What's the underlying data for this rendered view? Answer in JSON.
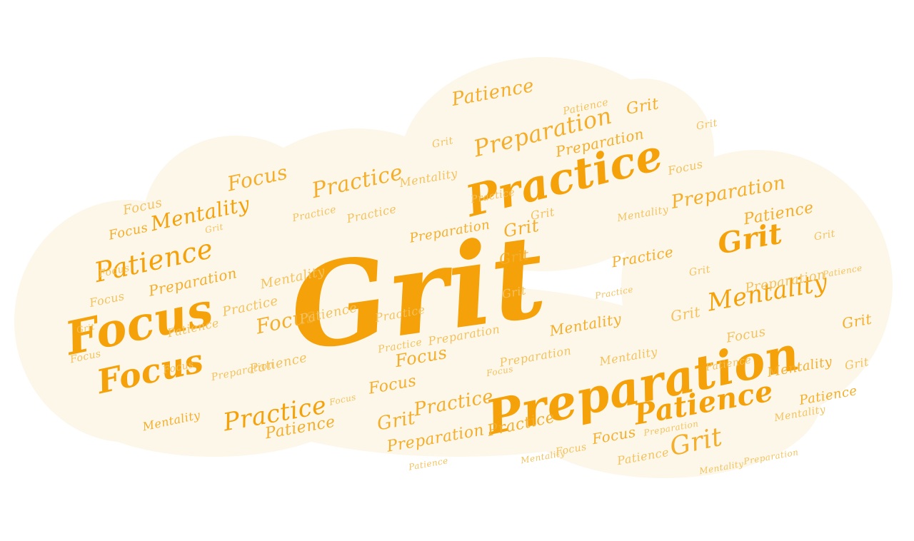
{
  "colors": {
    "background": "#ffffff",
    "cloud_fill": "#fdf7e9",
    "word_strong": "#f5a10a",
    "word_medium": "#f4ae2b",
    "word_light": "#f3c25e"
  },
  "words": [
    {
      "text": "Grit",
      "tone": "strong"
    },
    {
      "text": "Preparation",
      "tone": "strong"
    },
    {
      "text": "Practice",
      "tone": "strong"
    },
    {
      "text": "Grit",
      "tone": "strong"
    },
    {
      "text": "Mentality",
      "tone": "strong"
    },
    {
      "text": "Patience",
      "tone": "strong"
    },
    {
      "text": "Focus",
      "tone": "strong"
    },
    {
      "text": "Focus",
      "tone": "strong"
    },
    {
      "text": "Patience",
      "tone": "strong"
    },
    {
      "text": "Mentality",
      "tone": "strong"
    },
    {
      "text": "Practice",
      "tone": "strong"
    },
    {
      "text": "Preparation",
      "tone": "medium"
    },
    {
      "text": "Practice",
      "tone": "medium"
    },
    {
      "text": "Grit",
      "tone": "medium"
    },
    {
      "text": "Patience",
      "tone": "medium"
    },
    {
      "text": "Preparation",
      "tone": "medium"
    },
    {
      "text": "Focus",
      "tone": "medium"
    },
    {
      "text": "Grit",
      "tone": "medium"
    },
    {
      "text": "Grit",
      "tone": "medium"
    },
    {
      "text": "Focus",
      "tone": "medium"
    },
    {
      "text": "Practice",
      "tone": "medium"
    },
    {
      "text": "Preparation",
      "tone": "medium"
    },
    {
      "text": "Patience",
      "tone": "medium"
    },
    {
      "text": "Preparation",
      "tone": "medium"
    },
    {
      "text": "Focus",
      "tone": "medium"
    },
    {
      "text": "Grit",
      "tone": "medium"
    },
    {
      "text": "Focus",
      "tone": "medium"
    },
    {
      "text": "Patience",
      "tone": "medium"
    },
    {
      "text": "Mentality",
      "tone": "medium"
    },
    {
      "text": "Practice",
      "tone": "medium"
    },
    {
      "text": "Grit",
      "tone": "medium"
    },
    {
      "text": "Mentality",
      "tone": "medium"
    },
    {
      "text": "Preparation",
      "tone": "medium"
    },
    {
      "text": "Focus",
      "tone": "medium"
    },
    {
      "text": "Patience",
      "tone": "medium"
    },
    {
      "text": "Practice",
      "tone": "medium"
    },
    {
      "text": "Grit",
      "tone": "medium"
    },
    {
      "text": "Focus",
      "tone": "medium"
    },
    {
      "text": "Mentality",
      "tone": "medium"
    },
    {
      "text": "Preparation",
      "tone": "medium"
    },
    {
      "text": "Patience",
      "tone": "light"
    },
    {
      "text": "Practice",
      "tone": "light"
    },
    {
      "text": "Grit",
      "tone": "light"
    },
    {
      "text": "Focus",
      "tone": "light"
    },
    {
      "text": "Mentality",
      "tone": "light"
    },
    {
      "text": "Preparation",
      "tone": "light"
    },
    {
      "text": "Patience",
      "tone": "light"
    },
    {
      "text": "Focus",
      "tone": "light"
    },
    {
      "text": "Grit",
      "tone": "light"
    },
    {
      "text": "Practice",
      "tone": "light"
    },
    {
      "text": "Mentality",
      "tone": "light"
    },
    {
      "text": "Focus",
      "tone": "light"
    },
    {
      "text": "Patience",
      "tone": "light"
    },
    {
      "text": "Grit",
      "tone": "light"
    },
    {
      "text": "Preparation",
      "tone": "light"
    },
    {
      "text": "Practice",
      "tone": "light"
    },
    {
      "text": "Focus",
      "tone": "light"
    },
    {
      "text": "Mentality",
      "tone": "light"
    },
    {
      "text": "Grit",
      "tone": "light"
    },
    {
      "text": "Patience",
      "tone": "light"
    },
    {
      "text": "Practice",
      "tone": "light"
    },
    {
      "text": "Focus",
      "tone": "light"
    },
    {
      "text": "Preparation",
      "tone": "light"
    },
    {
      "text": "Grit",
      "tone": "light"
    },
    {
      "text": "Mentality",
      "tone": "light"
    },
    {
      "text": "Patience",
      "tone": "light"
    },
    {
      "text": "Focus",
      "tone": "light"
    },
    {
      "text": "Practice",
      "tone": "light"
    },
    {
      "text": "Grit",
      "tone": "light"
    },
    {
      "text": "Preparation",
      "tone": "light"
    },
    {
      "text": "Focus",
      "tone": "light"
    },
    {
      "text": "Patience",
      "tone": "light"
    },
    {
      "text": "Mentality",
      "tone": "light"
    },
    {
      "text": "Grit",
      "tone": "light"
    },
    {
      "text": "Practice",
      "tone": "light"
    },
    {
      "text": "Focus",
      "tone": "light"
    },
    {
      "text": "Preparation",
      "tone": "light"
    },
    {
      "text": "Grit",
      "tone": "light"
    },
    {
      "text": "Patience",
      "tone": "light"
    },
    {
      "text": "Focus",
      "tone": "light"
    },
    {
      "text": "Mentality",
      "tone": "light"
    },
    {
      "text": "Practice",
      "tone": "light"
    },
    {
      "text": "Grit",
      "tone": "light"
    },
    {
      "text": "Preparation",
      "tone": "light"
    },
    {
      "text": "Focus",
      "tone": "light"
    },
    {
      "text": "Patience",
      "tone": "light"
    },
    {
      "text": "Grit",
      "tone": "light"
    },
    {
      "text": "Mentality",
      "tone": "light"
    }
  ]
}
